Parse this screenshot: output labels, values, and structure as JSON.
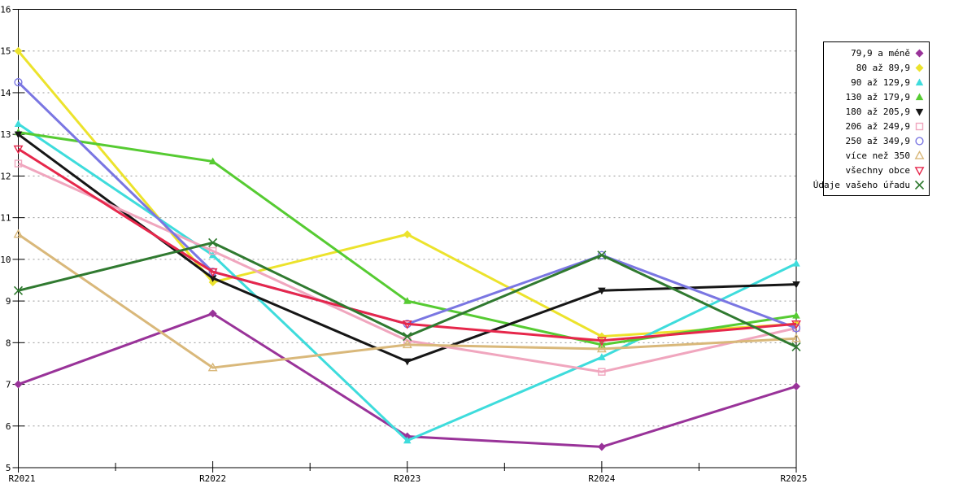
{
  "chart_data": {
    "type": "line",
    "title": "",
    "xlabel": "",
    "ylabel": "",
    "categories": [
      "R2021",
      "R2022",
      "R2023",
      "R2024",
      "R2025"
    ],
    "ylim": [
      5,
      16
    ],
    "yticks": [
      5,
      6,
      7,
      8,
      9,
      10,
      11,
      12,
      13,
      14,
      15,
      16
    ],
    "grid": true,
    "legend_position": "right",
    "series": [
      {
        "name": "79,9 a méně",
        "color": "#993399",
        "marker": "diamond",
        "values": [
          7.0,
          8.7,
          5.75,
          5.5,
          6.95
        ]
      },
      {
        "name": "80 až 89,9",
        "color": "#ece32c",
        "marker": "diamond",
        "values": [
          15.0,
          9.45,
          10.6,
          8.15,
          8.45
        ]
      },
      {
        "name": "90 až 129,9",
        "color": "#3edcdc",
        "marker": "triangle",
        "values": [
          13.25,
          10.1,
          5.65,
          7.65,
          9.9
        ]
      },
      {
        "name": "130 až 179,9",
        "color": "#56cb32",
        "marker": "triangle",
        "values": [
          13.05,
          12.35,
          9.0,
          7.95,
          8.65
        ]
      },
      {
        "name": "180 až 205,9",
        "color": "#161616",
        "marker": "triangle-down",
        "values": [
          13.0,
          9.55,
          7.55,
          9.25,
          9.4
        ]
      },
      {
        "name": "206 až 249,9",
        "color": "#f0a6be",
        "marker": "square-open",
        "values": [
          12.3,
          10.2,
          8.05,
          7.3,
          8.35
        ]
      },
      {
        "name": "250 až 349,9",
        "color": "#7a76e2",
        "marker": "circle-open",
        "values": [
          14.25,
          9.7,
          8.45,
          10.1,
          8.35
        ]
      },
      {
        "name": "více než 350",
        "color": "#d9b87a",
        "marker": "triangle-open",
        "values": [
          10.6,
          7.4,
          7.95,
          7.85,
          8.1
        ]
      },
      {
        "name": "všechny obce",
        "color": "#e6274b",
        "marker": "triangle-down-open",
        "values": [
          12.65,
          9.7,
          8.45,
          8.05,
          8.45
        ]
      },
      {
        "name": "Údaje vašeho úřadu",
        "color": "#307a30",
        "marker": "x-cross",
        "values": [
          9.25,
          10.4,
          8.15,
          10.1,
          7.9
        ]
      }
    ]
  },
  "layout_colors": {
    "grid": "#999999",
    "axis": "#000000",
    "background": "#ffffff"
  }
}
